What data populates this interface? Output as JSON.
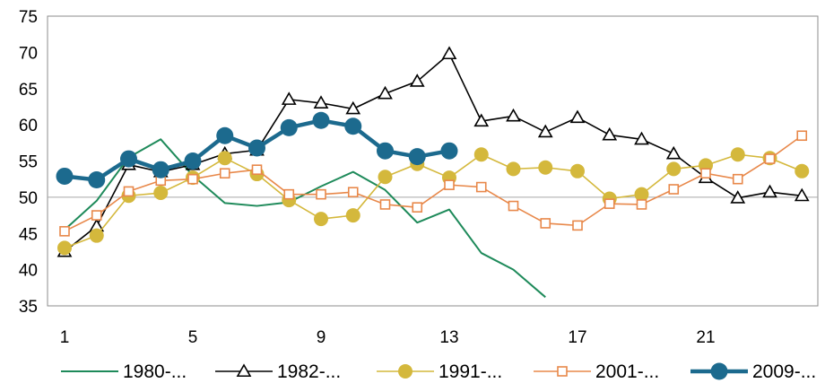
{
  "chart_data": {
    "type": "line",
    "title": "",
    "xlabel": "",
    "ylabel": "",
    "xlim": [
      1,
      24
    ],
    "ylim": [
      35,
      75
    ],
    "y_ticks": [
      35,
      40,
      45,
      50,
      55,
      60,
      65,
      70,
      75
    ],
    "x_ticks": [
      1,
      5,
      9,
      13,
      17,
      21
    ],
    "reference_line_y": 50,
    "grid": false,
    "legend_position": "bottom",
    "series": [
      {
        "name": "1980-...",
        "color": "#1e8a5a",
        "marker": "none",
        "x": [
          1,
          2,
          3,
          4,
          5,
          6,
          7,
          8,
          9,
          10,
          11,
          12,
          13,
          14,
          15,
          16
        ],
        "values": [
          45.5,
          49.5,
          55.5,
          58.0,
          53.0,
          49.2,
          48.8,
          49.3,
          51.5,
          53.5,
          51.0,
          46.5,
          48.3,
          42.3,
          40.0,
          36.2
        ]
      },
      {
        "name": "1982-...",
        "color": "#000000",
        "marker": "triangle",
        "x": [
          1,
          2,
          3,
          4,
          5,
          6,
          7,
          8,
          9,
          10,
          11,
          12,
          13,
          14,
          15,
          16,
          17,
          18,
          19,
          20,
          21,
          22,
          23,
          24
        ],
        "values": [
          42.5,
          46.0,
          54.5,
          53.5,
          54.5,
          56.0,
          56.5,
          63.5,
          63.0,
          62.2,
          64.3,
          66.0,
          69.8,
          60.5,
          61.2,
          59.0,
          61.0,
          58.6,
          58.0,
          56.0,
          52.7,
          49.9,
          50.7,
          50.2
        ]
      },
      {
        "name": "1991-...",
        "color": "#d4b83c",
        "marker": "circle",
        "x": [
          1,
          2,
          3,
          4,
          5,
          6,
          7,
          8,
          9,
          10,
          11,
          12,
          13,
          14,
          15,
          16,
          17,
          18,
          19,
          20,
          21,
          22,
          23,
          24
        ],
        "values": [
          43.0,
          44.7,
          50.2,
          50.6,
          52.7,
          55.4,
          53.2,
          49.6,
          47.0,
          47.5,
          52.8,
          54.6,
          52.7,
          55.9,
          53.9,
          54.1,
          53.6,
          49.8,
          50.4,
          53.9,
          54.4,
          55.9,
          55.4,
          53.6
        ]
      },
      {
        "name": "2001-...",
        "color": "#e8884a",
        "marker": "square",
        "x": [
          1,
          2,
          3,
          4,
          5,
          6,
          7,
          8,
          9,
          10,
          11,
          12,
          13,
          14,
          15,
          16,
          17,
          18,
          19,
          20,
          21,
          22,
          23,
          24
        ],
        "values": [
          45.3,
          47.5,
          50.8,
          52.3,
          52.5,
          53.3,
          53.8,
          50.4,
          50.4,
          50.7,
          49.0,
          48.6,
          51.7,
          51.4,
          48.8,
          46.4,
          46.1,
          49.1,
          49.0,
          51.1,
          53.3,
          52.5,
          55.3,
          58.5
        ]
      },
      {
        "name": "2009-...",
        "color": "#1c6a8e",
        "marker": "circle",
        "x": [
          1,
          2,
          3,
          4,
          5,
          6,
          7,
          8,
          9,
          10,
          11,
          12,
          13
        ],
        "values": [
          52.9,
          52.4,
          55.3,
          53.8,
          55.0,
          58.5,
          56.8,
          59.6,
          60.6,
          59.8,
          56.4,
          55.6,
          56.4
        ]
      }
    ]
  }
}
